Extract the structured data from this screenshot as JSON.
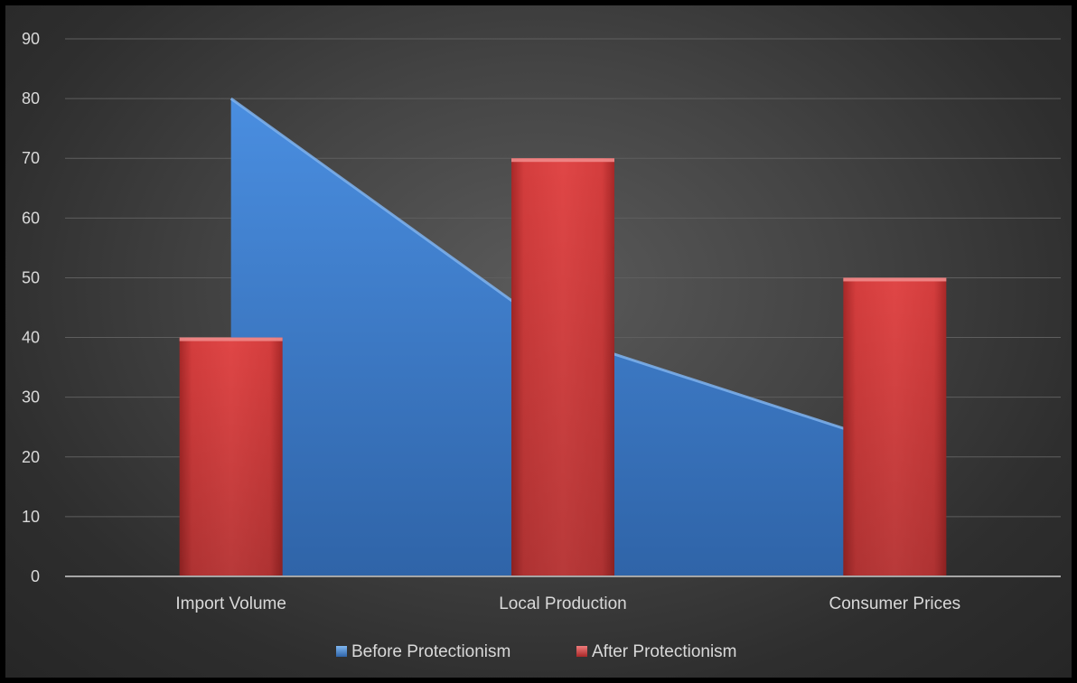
{
  "chart_data": {
    "type": "bar",
    "title": "",
    "xlabel": "",
    "ylabel": "",
    "categories": [
      "Import Volume",
      "Local Production",
      "Consumer Prices"
    ],
    "ylim": [
      0,
      90
    ],
    "yticks": [
      0,
      10,
      20,
      30,
      40,
      50,
      60,
      70,
      80,
      90
    ],
    "grid": true,
    "legend_position": "bottom",
    "series": [
      {
        "name": "Before Protectionism",
        "type": "area",
        "values": [
          80,
          40,
          22
        ],
        "color": "#3f7fd1"
      },
      {
        "name": "After Protectionism",
        "type": "bar",
        "values": [
          40,
          70,
          50
        ],
        "color": "#d63c3c"
      }
    ]
  }
}
